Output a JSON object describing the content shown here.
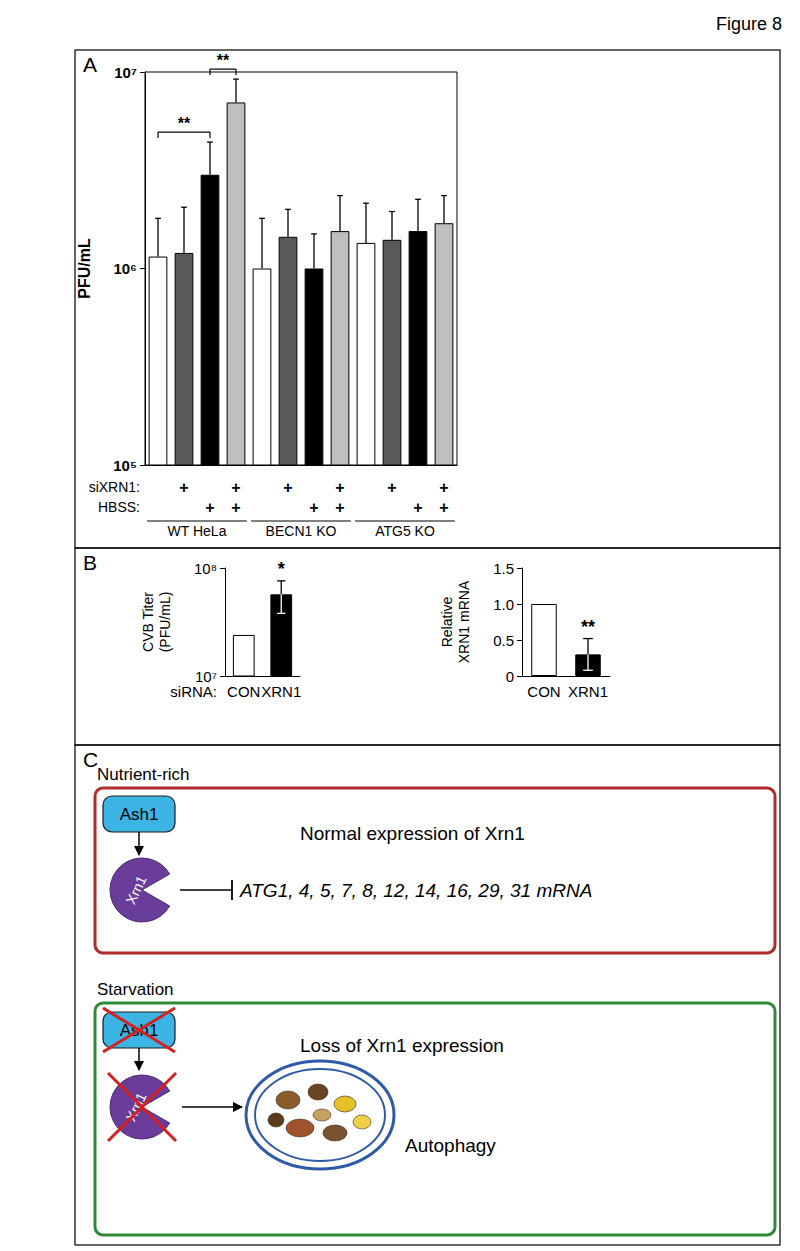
{
  "figure_label": "Figure 8",
  "panel_labels": [
    "A",
    "B",
    "C"
  ],
  "chart_data": [
    {
      "type": "bar",
      "y_label": "PFU/mL",
      "categories": [
        null,
        null,
        null,
        null,
        null,
        null,
        null,
        null,
        null,
        null,
        null,
        null
      ],
      "values": [
        1150000,
        1200000,
        3000000,
        7000000,
        1000000,
        1450000,
        1000000,
        1550000,
        1350000,
        1400000,
        1550000,
        1700000
      ],
      "errors": [
        650000,
        850000,
        1400000,
        2200000,
        800000,
        550000,
        500000,
        800000,
        800000,
        550000,
        700000,
        650000
      ],
      "colors": [
        "#ffffff",
        "#595959",
        "#000000",
        "#bfbfbf",
        "#ffffff",
        "#595959",
        "#000000",
        "#bfbfbf",
        "#ffffff",
        "#595959",
        "#000000",
        "#bfbfbf"
      ],
      "log": "y",
      "ylim": [
        100000,
        10000000
      ],
      "yticks": [
        {
          "value": 100000,
          "label": "10⁵"
        },
        {
          "value": 1000000,
          "label": "10⁶"
        },
        {
          "value": 10000000,
          "label": "10⁷"
        }
      ],
      "conditions": [
        {
          "label": "siXRN1:",
          "marks": [
            null,
            "+",
            null,
            "+",
            null,
            "+",
            null,
            "+",
            null,
            "+",
            null,
            "+"
          ]
        },
        {
          "label": "HBSS:",
          "marks": [
            null,
            null,
            "+",
            "+",
            null,
            null,
            "+",
            "+",
            null,
            null,
            "+",
            "+"
          ]
        }
      ],
      "groups": [
        "WT HeLa",
        "WT HeLa",
        "WT HeLa",
        "WT HeLa",
        "BECN1 KO",
        "BECN1 KO",
        "BECN1 KO",
        "BECN1 KO",
        "ATG5 KO",
        "ATG5 KO",
        "ATG5 KO",
        "ATG5 KO"
      ],
      "annotations": [
        {
          "text": "**",
          "from": 0,
          "to": 2
        },
        {
          "text": "**",
          "from": 2,
          "to": 3
        }
      ]
    },
    {
      "type": "bar",
      "y_label": "CVB Titer\n(PFU/mL)",
      "category_label": "siRNA:",
      "categories": [
        "CON",
        "XRN1"
      ],
      "values": [
        24000000,
        57000000
      ],
      "errors": [
        null,
        19000000
      ],
      "colors": [
        "#ffffff",
        "#000000"
      ],
      "log": "y",
      "ylim": [
        10000000,
        100000000
      ],
      "yticks": [
        {
          "value": 10000000,
          "label": "10⁷"
        },
        {
          "value": 100000000,
          "label": "10⁸"
        }
      ],
      "annotations": [
        {
          "text": "*",
          "from": 1,
          "to": 1
        }
      ]
    },
    {
      "type": "bar",
      "y_label": "Relative\nXRN1 mRNA",
      "categories": [
        "CON",
        "XRN1"
      ],
      "values": [
        1.0,
        0.3
      ],
      "errors": [
        null,
        0.22
      ],
      "colors": [
        "#ffffff",
        "#000000"
      ],
      "ylim": [
        0,
        1.5
      ],
      "yticks": [
        0,
        0.5,
        {
          "value": 1,
          "label": "1.0"
        },
        1.5
      ],
      "annotations": [
        {
          "text": "**",
          "from": 1,
          "to": 1
        }
      ]
    }
  ],
  "diagram": {
    "states": [
      {
        "label": "Nutrient-rich",
        "regulator": "Ash1",
        "nuclease": "Xrn1",
        "description": "Normal expression of Xrn1",
        "target": "ATG1, 4, 5, 7, 8, 12, 14, 16, 29, 31 mRNA"
      },
      {
        "label": "Starvation",
        "regulator": "Ash1",
        "nuclease": "Xrn1",
        "description": "Loss of Xrn1 expression",
        "outcome": "Autophagy"
      }
    ]
  }
}
